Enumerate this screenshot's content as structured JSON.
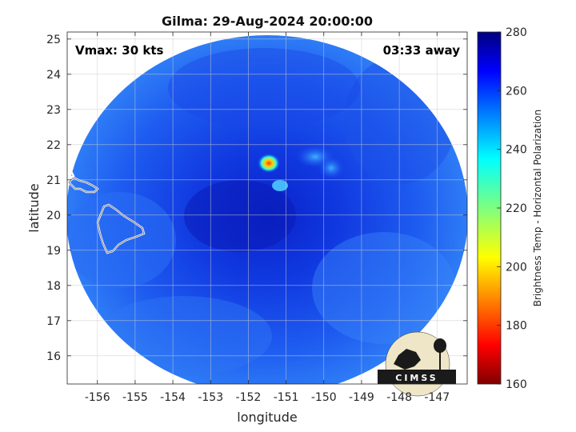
{
  "chart_data": {
    "type": "heatmap",
    "title": "Gilma: 29-Aug-2024 20:00:00",
    "xlabel": "longitude",
    "ylabel": "latitude",
    "xlim": [
      -156.8,
      -146.2
    ],
    "ylim": [
      15.2,
      25.2
    ],
    "x_ticks": [
      -156,
      -155,
      -154,
      -153,
      -152,
      -151,
      -150,
      -149,
      -148,
      -147
    ],
    "x_tick_labels": [
      "-156",
      "-155",
      "-154",
      "-153",
      "-152",
      "-151",
      "-150",
      "-149",
      "-148",
      "-147"
    ],
    "y_ticks": [
      16,
      17,
      18,
      19,
      20,
      21,
      22,
      23,
      24,
      25
    ],
    "y_tick_labels": [
      "16",
      "17",
      "18",
      "19",
      "20",
      "21",
      "22",
      "23",
      "24",
      "25"
    ],
    "grid": true,
    "annotations": {
      "vmax": "Vmax: 30 kts",
      "time_away": "03:33 away"
    },
    "colorbar": {
      "label": "Brightness Temp - Horizontal Polarization",
      "range": [
        160,
        280
      ],
      "ticks": [
        160,
        180,
        200,
        220,
        240,
        260,
        280
      ],
      "tick_labels": [
        "160",
        "180",
        "200",
        "220",
        "240",
        "260",
        "280"
      ],
      "colormap": "jet"
    },
    "swath": {
      "center_lon": -151.5,
      "center_lat": 20.3,
      "background_value": 255
    },
    "features": [
      {
        "name": "cold core",
        "lon": -151.5,
        "lat": 21.45,
        "value": 190
      },
      {
        "name": "cold patch 1",
        "lon": -151.1,
        "lat": 20.8,
        "value": 240
      },
      {
        "name": "rainband 1",
        "lon": -150.5,
        "lat": 21.7,
        "value": 248
      },
      {
        "name": "rainband 2",
        "lon": -150.0,
        "lat": 21.4,
        "value": 248
      },
      {
        "name": "eye region",
        "lon": -151.2,
        "lat": 20.6,
        "value": 268
      }
    ],
    "land_outlines": [
      "Hawaii",
      "Maui"
    ]
  },
  "logo": {
    "text": "CIMSS"
  }
}
